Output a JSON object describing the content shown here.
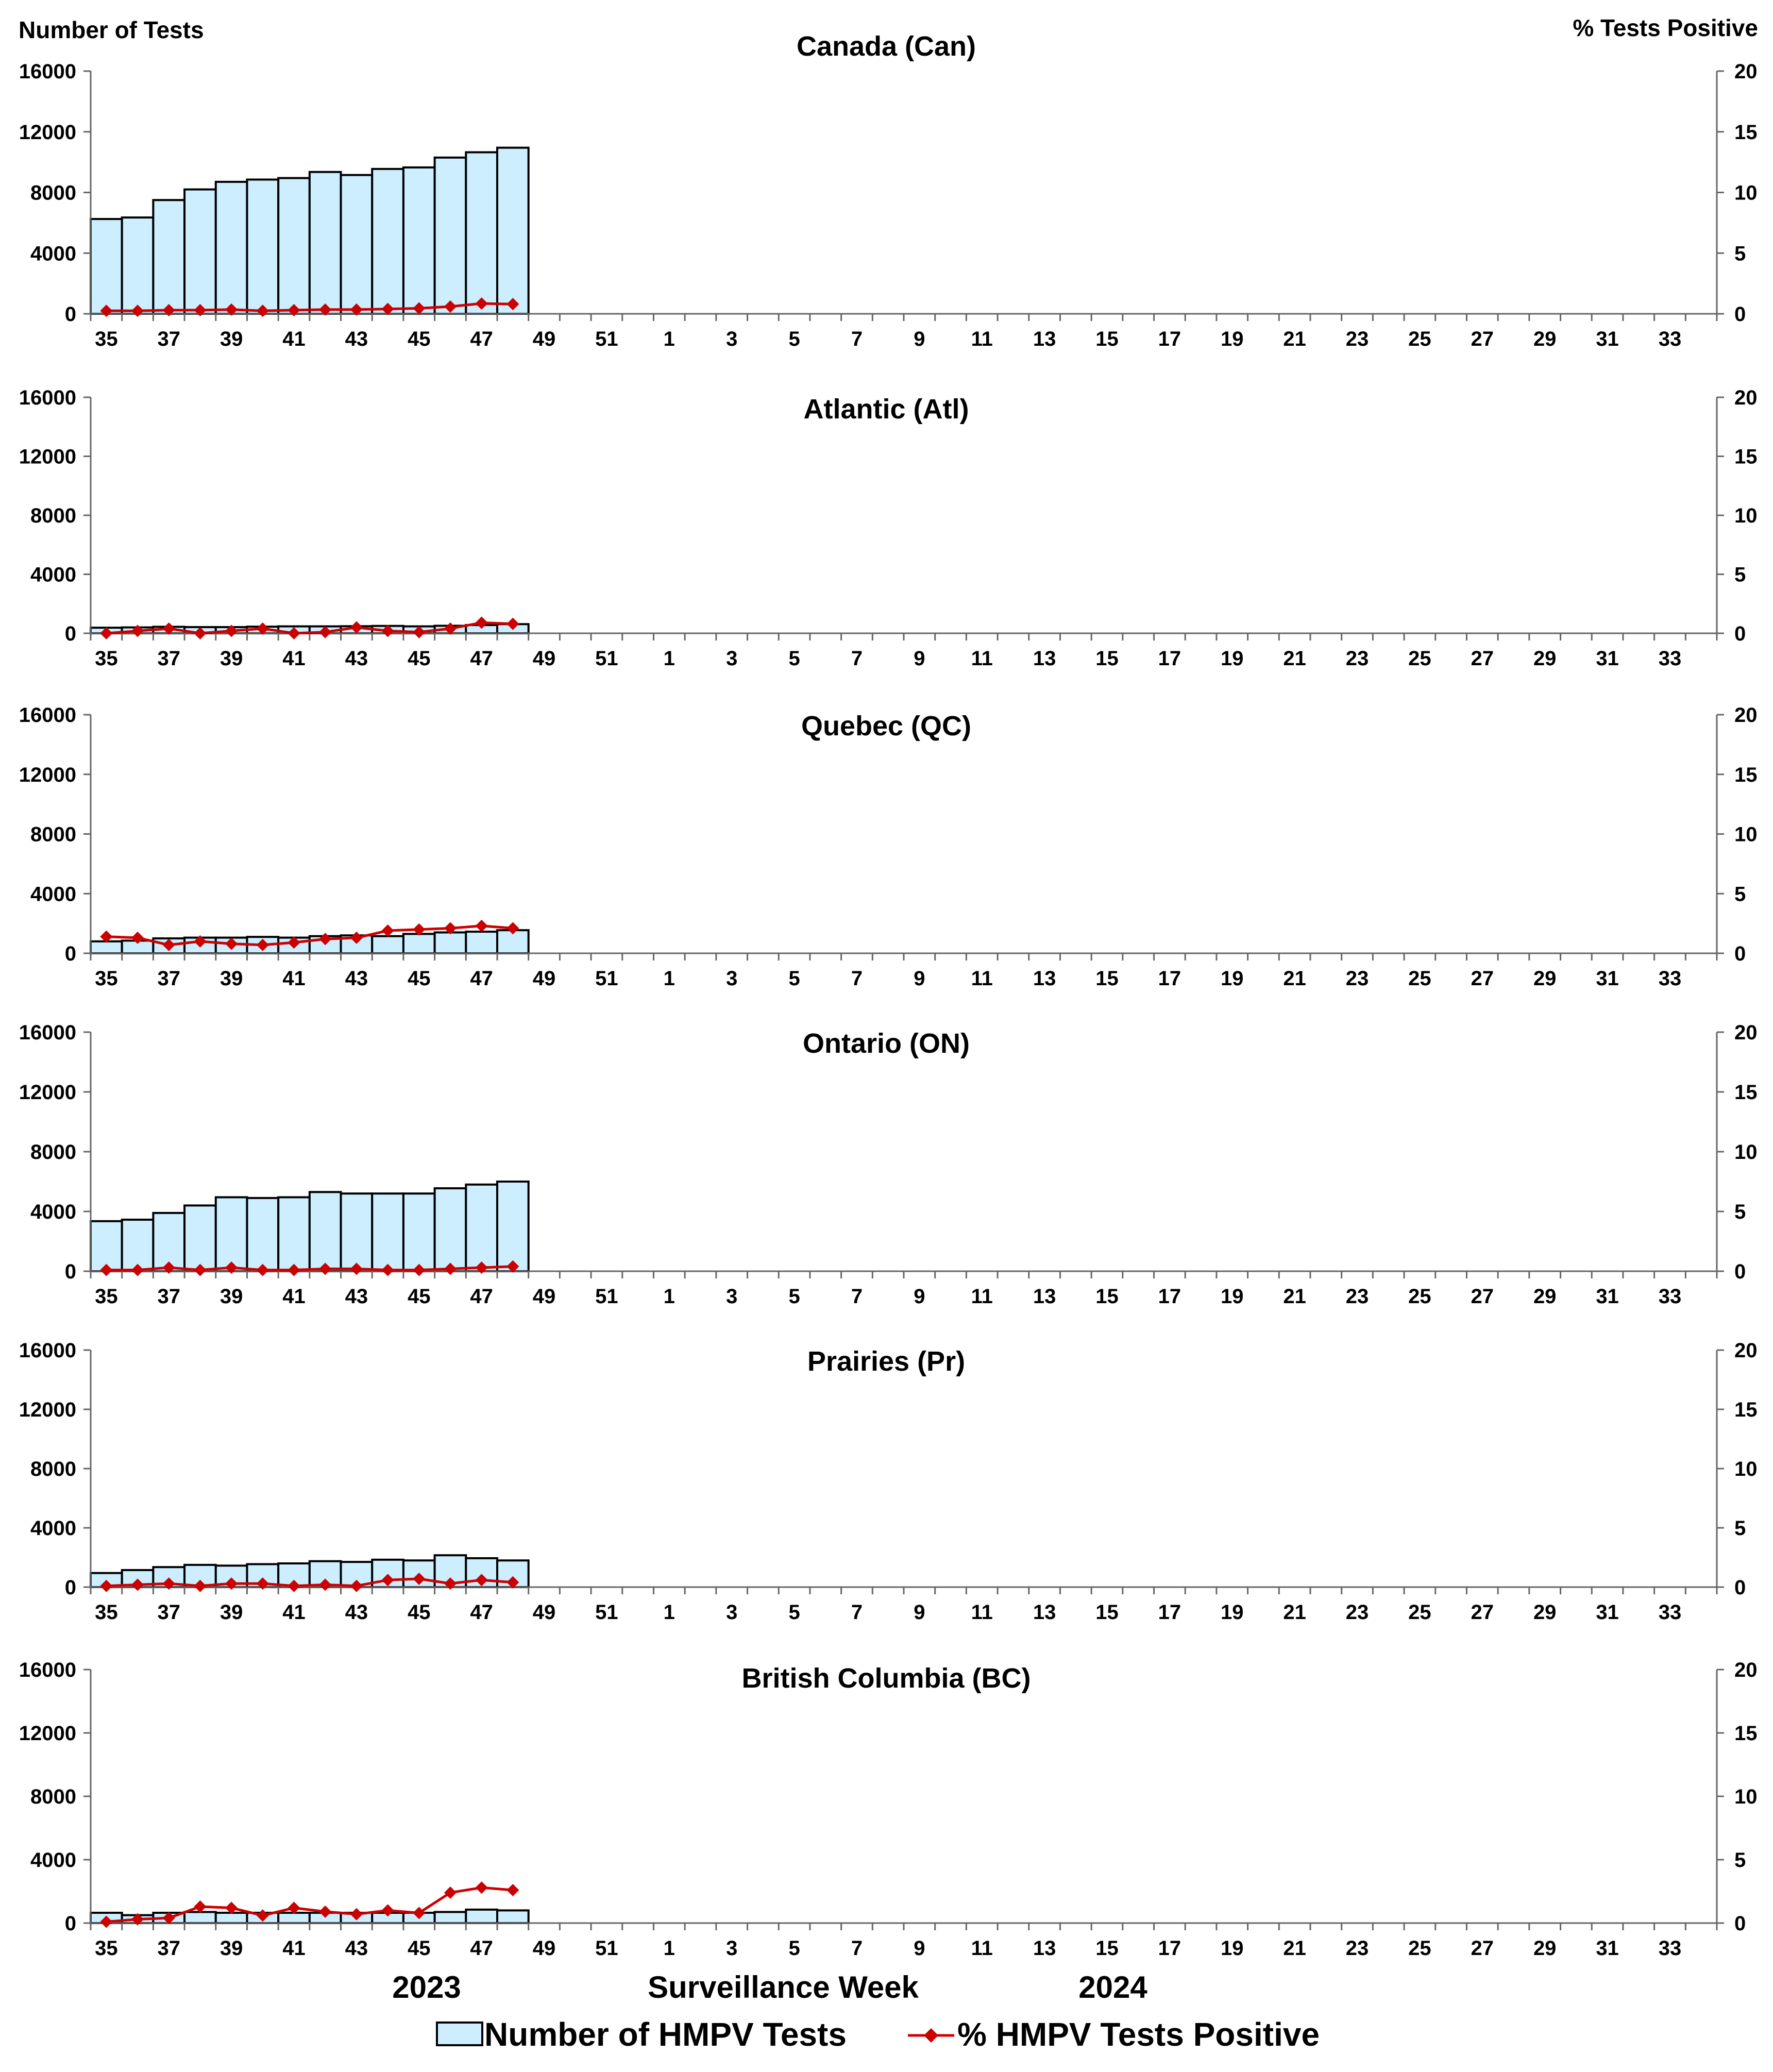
{
  "figure": {
    "left_axis_title": "Number of Tests",
    "right_axis_title": "% Tests Positive",
    "x_axis_title": "Surveillance Week",
    "year_labels": [
      "2023",
      "2024"
    ],
    "legend": {
      "bars_label": "Number of HMPV Tests",
      "line_label": "% HMPV Tests Positive"
    },
    "colors": {
      "bar_fill": "#cceeff",
      "bar_stroke": "#000000",
      "line": "#cc0000"
    }
  },
  "chart_data": [
    {
      "type": "bar+line",
      "title": "Canada (Can)",
      "weeks": [
        "35",
        "36",
        "37",
        "38",
        "39",
        "40",
        "41",
        "42",
        "43",
        "44",
        "45",
        "46",
        "47",
        "48",
        "49",
        "50",
        "51",
        "52",
        "1",
        "2",
        "3",
        "4",
        "5",
        "6",
        "7",
        "8",
        "9",
        "10",
        "11",
        "12",
        "13",
        "14",
        "15",
        "16",
        "17",
        "18",
        "19",
        "20",
        "21",
        "22",
        "23",
        "24",
        "25",
        "26",
        "27",
        "28",
        "29",
        "30",
        "31",
        "32",
        "33",
        "34"
      ],
      "tick_labels": [
        "35",
        "37",
        "39",
        "41",
        "43",
        "45",
        "47",
        "49",
        "51",
        "1",
        "3",
        "5",
        "7",
        "9",
        "11",
        "13",
        "15",
        "17",
        "19",
        "21",
        "23",
        "25",
        "27",
        "29",
        "31",
        "33"
      ],
      "ylim_left": [
        0,
        16000
      ],
      "yticks_left": [
        "0",
        "4000",
        "8000",
        "12000",
        "16000"
      ],
      "ylim_right": [
        0,
        20
      ],
      "yticks_right": [
        "0",
        "5",
        "10",
        "15",
        "20"
      ],
      "tests": [
        6250,
        6350,
        7500,
        8200,
        8700,
        8850,
        8950,
        9350,
        9150,
        9550,
        9650,
        10300,
        10650,
        10950
      ],
      "pct_positive": [
        0.25,
        0.25,
        0.3,
        0.3,
        0.35,
        0.25,
        0.3,
        0.35,
        0.35,
        0.4,
        0.45,
        0.6,
        0.85,
        0.8
      ]
    },
    {
      "type": "bar+line",
      "title": "Atlantic (Atl)",
      "weeks": [
        "35",
        "36",
        "37",
        "38",
        "39",
        "40",
        "41",
        "42",
        "43",
        "44",
        "45",
        "46",
        "47",
        "48",
        "49",
        "50",
        "51",
        "52",
        "1",
        "2",
        "3",
        "4",
        "5",
        "6",
        "7",
        "8",
        "9",
        "10",
        "11",
        "12",
        "13",
        "14",
        "15",
        "16",
        "17",
        "18",
        "19",
        "20",
        "21",
        "22",
        "23",
        "24",
        "25",
        "26",
        "27",
        "28",
        "29",
        "30",
        "31",
        "32",
        "33",
        "34"
      ],
      "tick_labels": [
        "35",
        "37",
        "39",
        "41",
        "43",
        "45",
        "47",
        "49",
        "51",
        "1",
        "3",
        "5",
        "7",
        "9",
        "11",
        "13",
        "15",
        "17",
        "19",
        "21",
        "23",
        "25",
        "27",
        "29",
        "31",
        "33"
      ],
      "ylim_left": [
        0,
        16000
      ],
      "yticks_left": [
        "0",
        "4000",
        "8000",
        "12000",
        "16000"
      ],
      "ylim_right": [
        0,
        20
      ],
      "yticks_right": [
        "0",
        "5",
        "10",
        "15",
        "20"
      ],
      "tests": [
        380,
        400,
        440,
        420,
        420,
        450,
        470,
        470,
        480,
        500,
        470,
        510,
        560,
        620
      ],
      "pct_positive": [
        0.0,
        0.2,
        0.4,
        0.0,
        0.2,
        0.4,
        0.0,
        0.1,
        0.5,
        0.2,
        0.1,
        0.4,
        0.9,
        0.8
      ]
    },
    {
      "type": "bar+line",
      "title": "Quebec (QC)",
      "weeks": [
        "35",
        "36",
        "37",
        "38",
        "39",
        "40",
        "41",
        "42",
        "43",
        "44",
        "45",
        "46",
        "47",
        "48",
        "49",
        "50",
        "51",
        "52",
        "1",
        "2",
        "3",
        "4",
        "5",
        "6",
        "7",
        "8",
        "9",
        "10",
        "11",
        "12",
        "13",
        "14",
        "15",
        "16",
        "17",
        "18",
        "19",
        "20",
        "21",
        "22",
        "23",
        "24",
        "25",
        "26",
        "27",
        "28",
        "29",
        "30",
        "31",
        "32",
        "33",
        "34"
      ],
      "tick_labels": [
        "35",
        "37",
        "39",
        "41",
        "43",
        "45",
        "47",
        "49",
        "51",
        "1",
        "3",
        "5",
        "7",
        "9",
        "11",
        "13",
        "15",
        "17",
        "19",
        "21",
        "23",
        "25",
        "27",
        "29",
        "31",
        "33"
      ],
      "ylim_left": [
        0,
        16000
      ],
      "yticks_left": [
        "0",
        "4000",
        "8000",
        "12000",
        "16000"
      ],
      "ylim_right": [
        0,
        20
      ],
      "yticks_right": [
        "0",
        "5",
        "10",
        "15",
        "20"
      ],
      "tests": [
        800,
        850,
        1000,
        1050,
        1050,
        1100,
        1050,
        1150,
        1200,
        1150,
        1300,
        1400,
        1450,
        1550
      ],
      "pct_positive": [
        1.4,
        1.3,
        0.7,
        1.0,
        0.8,
        0.7,
        0.9,
        1.2,
        1.3,
        1.9,
        2.0,
        2.1,
        2.3,
        2.1
      ]
    },
    {
      "type": "bar+line",
      "title": "Ontario (ON)",
      "weeks": [
        "35",
        "36",
        "37",
        "38",
        "39",
        "40",
        "41",
        "42",
        "43",
        "44",
        "45",
        "46",
        "47",
        "48",
        "49",
        "50",
        "51",
        "52",
        "1",
        "2",
        "3",
        "4",
        "5",
        "6",
        "7",
        "8",
        "9",
        "10",
        "11",
        "12",
        "13",
        "14",
        "15",
        "16",
        "17",
        "18",
        "19",
        "20",
        "21",
        "22",
        "23",
        "24",
        "25",
        "26",
        "27",
        "28",
        "29",
        "30",
        "31",
        "32",
        "33",
        "34"
      ],
      "tick_labels": [
        "35",
        "37",
        "39",
        "41",
        "43",
        "45",
        "47",
        "49",
        "51",
        "1",
        "3",
        "5",
        "7",
        "9",
        "11",
        "13",
        "15",
        "17",
        "19",
        "21",
        "23",
        "25",
        "27",
        "29",
        "31",
        "33"
      ],
      "ylim_left": [
        0,
        16000
      ],
      "yticks_left": [
        "0",
        "4000",
        "8000",
        "12000",
        "16000"
      ],
      "ylim_right": [
        0,
        20
      ],
      "yticks_right": [
        "0",
        "5",
        "10",
        "15",
        "20"
      ],
      "tests": [
        3350,
        3450,
        3900,
        4400,
        4950,
        4900,
        4950,
        5300,
        5200,
        5200,
        5200,
        5550,
        5800,
        6000
      ],
      "pct_positive": [
        0.1,
        0.1,
        0.3,
        0.1,
        0.3,
        0.1,
        0.1,
        0.2,
        0.2,
        0.1,
        0.1,
        0.2,
        0.3,
        0.4
      ]
    },
    {
      "type": "bar+line",
      "title": "Prairies (Pr)",
      "weeks": [
        "35",
        "36",
        "37",
        "38",
        "39",
        "40",
        "41",
        "42",
        "43",
        "44",
        "45",
        "46",
        "47",
        "48",
        "49",
        "50",
        "51",
        "52",
        "1",
        "2",
        "3",
        "4",
        "5",
        "6",
        "7",
        "8",
        "9",
        "10",
        "11",
        "12",
        "13",
        "14",
        "15",
        "16",
        "17",
        "18",
        "19",
        "20",
        "21",
        "22",
        "23",
        "24",
        "25",
        "26",
        "27",
        "28",
        "29",
        "30",
        "31",
        "32",
        "33",
        "34"
      ],
      "tick_labels": [
        "35",
        "37",
        "39",
        "41",
        "43",
        "45",
        "47",
        "49",
        "51",
        "1",
        "3",
        "5",
        "7",
        "9",
        "11",
        "13",
        "15",
        "17",
        "19",
        "21",
        "23",
        "25",
        "27",
        "29",
        "31",
        "33"
      ],
      "ylim_left": [
        0,
        16000
      ],
      "yticks_left": [
        "0",
        "4000",
        "8000",
        "12000",
        "16000"
      ],
      "ylim_right": [
        0,
        20
      ],
      "yticks_right": [
        "0",
        "5",
        "10",
        "15",
        "20"
      ],
      "tests": [
        950,
        1150,
        1350,
        1500,
        1450,
        1550,
        1600,
        1750,
        1700,
        1850,
        1800,
        2150,
        1950,
        1800
      ],
      "pct_positive": [
        0.1,
        0.2,
        0.3,
        0.1,
        0.3,
        0.3,
        0.1,
        0.2,
        0.1,
        0.6,
        0.7,
        0.3,
        0.6,
        0.4
      ]
    },
    {
      "type": "bar+line",
      "title": "British Columbia (BC)",
      "weeks": [
        "35",
        "36",
        "37",
        "38",
        "39",
        "40",
        "41",
        "42",
        "43",
        "44",
        "45",
        "46",
        "47",
        "48",
        "49",
        "50",
        "51",
        "52",
        "1",
        "2",
        "3",
        "4",
        "5",
        "6",
        "7",
        "8",
        "9",
        "10",
        "11",
        "12",
        "13",
        "14",
        "15",
        "16",
        "17",
        "18",
        "19",
        "20",
        "21",
        "22",
        "23",
        "24",
        "25",
        "26",
        "27",
        "28",
        "29",
        "30",
        "31",
        "32",
        "33",
        "34"
      ],
      "tick_labels": [
        "35",
        "37",
        "39",
        "41",
        "43",
        "45",
        "47",
        "49",
        "51",
        "1",
        "3",
        "5",
        "7",
        "9",
        "11",
        "13",
        "15",
        "17",
        "19",
        "21",
        "23",
        "25",
        "27",
        "29",
        "31",
        "33"
      ],
      "ylim_left": [
        0,
        16000
      ],
      "yticks_left": [
        "0",
        "4000",
        "8000",
        "12000",
        "16000"
      ],
      "ylim_right": [
        0,
        20
      ],
      "yticks_right": [
        "0",
        "5",
        "10",
        "15",
        "20"
      ],
      "tests": [
        650,
        500,
        650,
        700,
        650,
        650,
        650,
        650,
        650,
        650,
        650,
        700,
        850,
        800
      ],
      "pct_positive": [
        0.1,
        0.3,
        0.4,
        1.3,
        1.2,
        0.6,
        1.2,
        0.9,
        0.7,
        1.0,
        0.8,
        2.4,
        2.8,
        2.6
      ]
    }
  ]
}
